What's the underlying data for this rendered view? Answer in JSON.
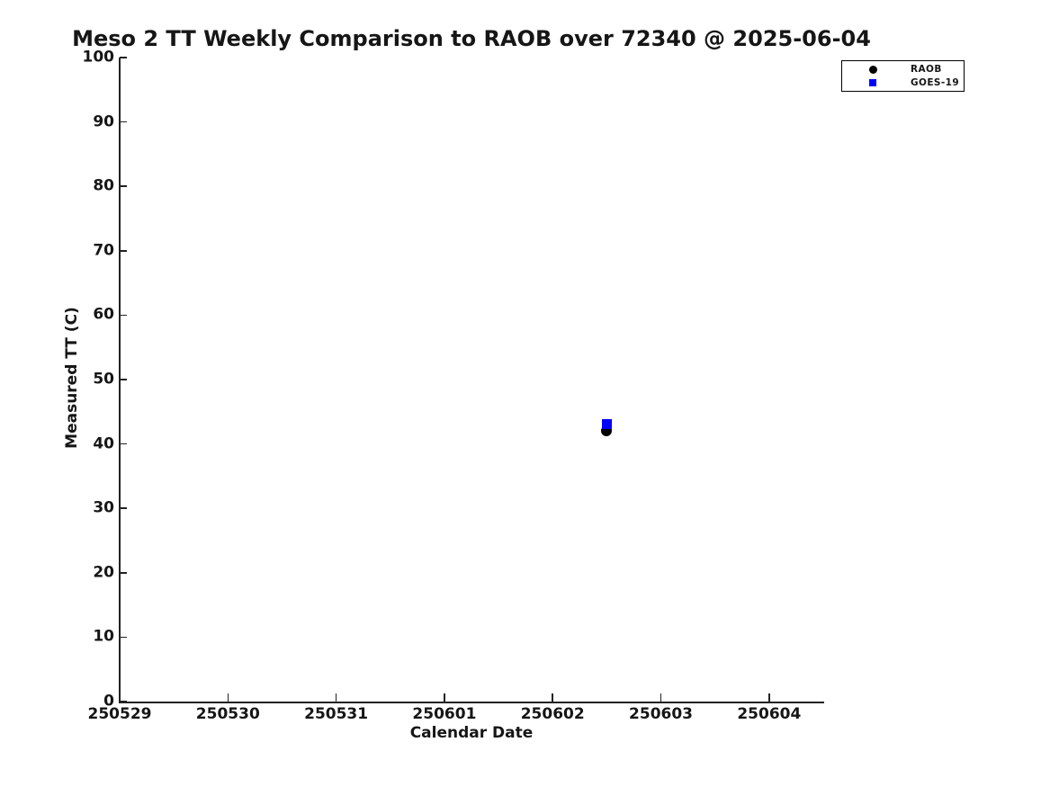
{
  "chart_data": {
    "type": "scatter",
    "title": "Meso 2 TT Weekly Comparison to RAOB over 72340 @ 2025-06-04",
    "xlabel": "Calendar Date",
    "ylabel": "Measured TT (C)",
    "x_tick_labels": [
      "250529",
      "250530",
      "250531",
      "250601",
      "250602",
      "250603",
      "250604"
    ],
    "xlim_day_index": [
      0,
      6.5
    ],
    "y_ticks": [
      0,
      10,
      20,
      30,
      40,
      50,
      60,
      70,
      80,
      90,
      100
    ],
    "ylim": [
      0,
      100
    ],
    "grid": false,
    "box": "left-bottom-spines-only",
    "tick_direction": "in",
    "legend_position": "top-right-outside-plot",
    "series": [
      {
        "name": "RAOB",
        "marker": "circle",
        "color": "#000000",
        "marker_size_px": 12,
        "points": [
          {
            "x": "250602.5",
            "x_day_index": 4.5,
            "y": 42.0
          }
        ]
      },
      {
        "name": "GOES-19",
        "marker": "square",
        "color": "#0000ff",
        "marker_size_px": 11,
        "points": [
          {
            "x": "250602.5",
            "x_day_index": 4.5,
            "y": 43.1
          }
        ]
      }
    ]
  },
  "legend": {
    "items": [
      {
        "label": "RAOB",
        "marker": "circle",
        "color": "#000000"
      },
      {
        "label": "GOES-19",
        "marker": "square",
        "color": "#0000ff"
      }
    ]
  }
}
